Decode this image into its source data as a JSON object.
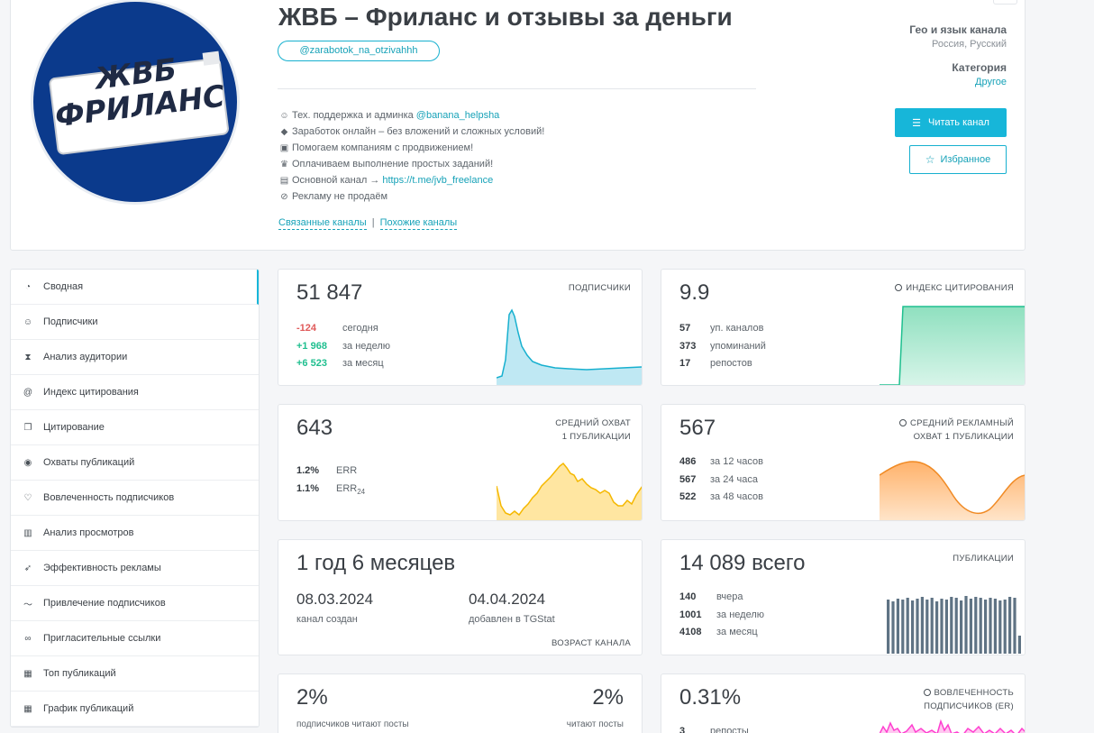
{
  "header": {
    "title": "ЖВБ – Фриланс и отзывы за деньги",
    "handle": "@zarabotok_na_otzivahhh",
    "avatar_line1": "ЖВБ",
    "avatar_line2": "ФРИЛАНС",
    "description": [
      {
        "icon": "face-emoji-icon",
        "glyph": "☺",
        "text": "Тех. поддержка и админка",
        "link": "@banana_helpsha"
      },
      {
        "icon": "diamond-icon",
        "glyph": "◆",
        "text": "Заработок онлайн – без вложений и сложных условий!",
        "link": ""
      },
      {
        "icon": "briefcase-icon",
        "glyph": "▣",
        "text": "Помогаем компаниям с продвижением!",
        "link": ""
      },
      {
        "icon": "trophy-icon",
        "glyph": "♛",
        "text": "Оплачиваем выполнение простых заданий!",
        "link": ""
      },
      {
        "icon": "scroll-icon",
        "glyph": "▤",
        "text": "Основной канал →",
        "link": "https://t.me/jvb_freelance"
      },
      {
        "icon": "no-entry-icon",
        "glyph": "⊘",
        "text": "Рекламу не продаём",
        "link": ""
      }
    ],
    "related": "Связанные каналы",
    "related_sep": "|",
    "similar": "Похожие каналы",
    "geo_label": "Гео и язык канала",
    "geo_value": "Россия, Русский",
    "category_label": "Категория",
    "category_value": "Другое",
    "read_button": "Читать канал",
    "favorite_button": "Избранное"
  },
  "sidebar": {
    "items": [
      {
        "label": "Сводная",
        "icon": "dashboard-icon",
        "glyph": "◔"
      },
      {
        "label": "Подписчики",
        "icon": "users-icon",
        "glyph": "☺"
      },
      {
        "label": "Анализ аудитории",
        "icon": "hourglass-icon",
        "glyph": "⧗"
      },
      {
        "label": "Индекс цитирования",
        "icon": "at-icon",
        "glyph": "@"
      },
      {
        "label": "Цитирование",
        "icon": "copy-icon",
        "glyph": "❐"
      },
      {
        "label": "Охваты публикаций",
        "icon": "eye-icon",
        "glyph": "◉"
      },
      {
        "label": "Вовлеченность подписчиков",
        "icon": "heart-icon",
        "glyph": "♡"
      },
      {
        "label": "Анализ просмотров",
        "icon": "bar-chart-icon",
        "glyph": "▥"
      },
      {
        "label": "Эффективность рекламы",
        "icon": "rocket-icon",
        "glyph": "➶"
      },
      {
        "label": "Привлечение подписчиков",
        "icon": "trend-icon",
        "glyph": "〜"
      },
      {
        "label": "Пригласительные ссылки",
        "icon": "link-icon",
        "glyph": "∞"
      },
      {
        "label": "Топ публикаций",
        "icon": "top-icon",
        "glyph": "▦"
      },
      {
        "label": "График публикаций",
        "icon": "calendar-icon",
        "glyph": "▦"
      }
    ]
  },
  "cards": {
    "subscribers": {
      "value": "51 847",
      "title": "ПОДПИСЧИКИ",
      "rows": [
        {
          "num": "-124",
          "label": "сегодня"
        },
        {
          "num": "+1 968",
          "label": "за неделю"
        },
        {
          "num": "+6 523",
          "label": "за месяц"
        }
      ]
    },
    "citation": {
      "value": "9.9",
      "title": "ИНДЕКС ЦИТИРОВАНИЯ",
      "rows": [
        {
          "num": "57",
          "label": "уп. каналов"
        },
        {
          "num": "373",
          "label": "упоминаний"
        },
        {
          "num": "17",
          "label": "репостов"
        }
      ]
    },
    "reach": {
      "value": "643",
      "title_line1": "СРЕДНИЙ ОХВАТ",
      "title_line2": "1 ПУБЛИКАЦИИ",
      "rows": [
        {
          "num": "1.2%",
          "label": "ERR"
        },
        {
          "num": "1.1%",
          "label": "ERR",
          "sub": "24"
        }
      ]
    },
    "ad_reach": {
      "value": "567",
      "title_line1": "СРЕДНИЙ РЕКЛАМНЫЙ",
      "title_line2": "ОХВАТ 1 ПУБЛИКАЦИИ",
      "rows": [
        {
          "num": "486",
          "label": "за 12 часов"
        },
        {
          "num": "567",
          "label": "за 24 часа"
        },
        {
          "num": "522",
          "label": "за 48 часов"
        }
      ]
    },
    "age": {
      "value": "1 год 6 месяцев",
      "created_date": "08.03.2024",
      "created_label": "канал создан",
      "added_date": "04.04.2024",
      "added_label": "добавлен в TGStat",
      "title": "ВОЗРАСТ КАНАЛА"
    },
    "posts": {
      "value": "14 089",
      "unit": "всего",
      "title": "ПУБЛИКАЦИИ",
      "rows": [
        {
          "num": "140",
          "label": "вчера"
        },
        {
          "num": "1001",
          "label": "за неделю"
        },
        {
          "num": "4108",
          "label": "за месяц"
        }
      ]
    },
    "readers": {
      "left_value": "2%",
      "left_label": "подписчиков читают посты",
      "right_value": "2%",
      "right_label": "читают посты"
    },
    "er": {
      "value": "0.31%",
      "title_line1": "ВОВЛЕЧЕННОСТЬ",
      "title_line2": "ПОДПИСЧИКОВ (ER)",
      "row_num": "3",
      "row_label": "репосты"
    }
  },
  "colors": {
    "accent": "#17b6d9",
    "negative": "#e05a5a",
    "positive": "#1fbf8f",
    "subs_fill": "#bfe8f3",
    "citation_fill": "#8fe0bf",
    "reach_fill": "#ffd978",
    "ad_fill": "#ffc38a",
    "posts_bar": "#5f7384",
    "er_line": "#ff3fd0"
  }
}
